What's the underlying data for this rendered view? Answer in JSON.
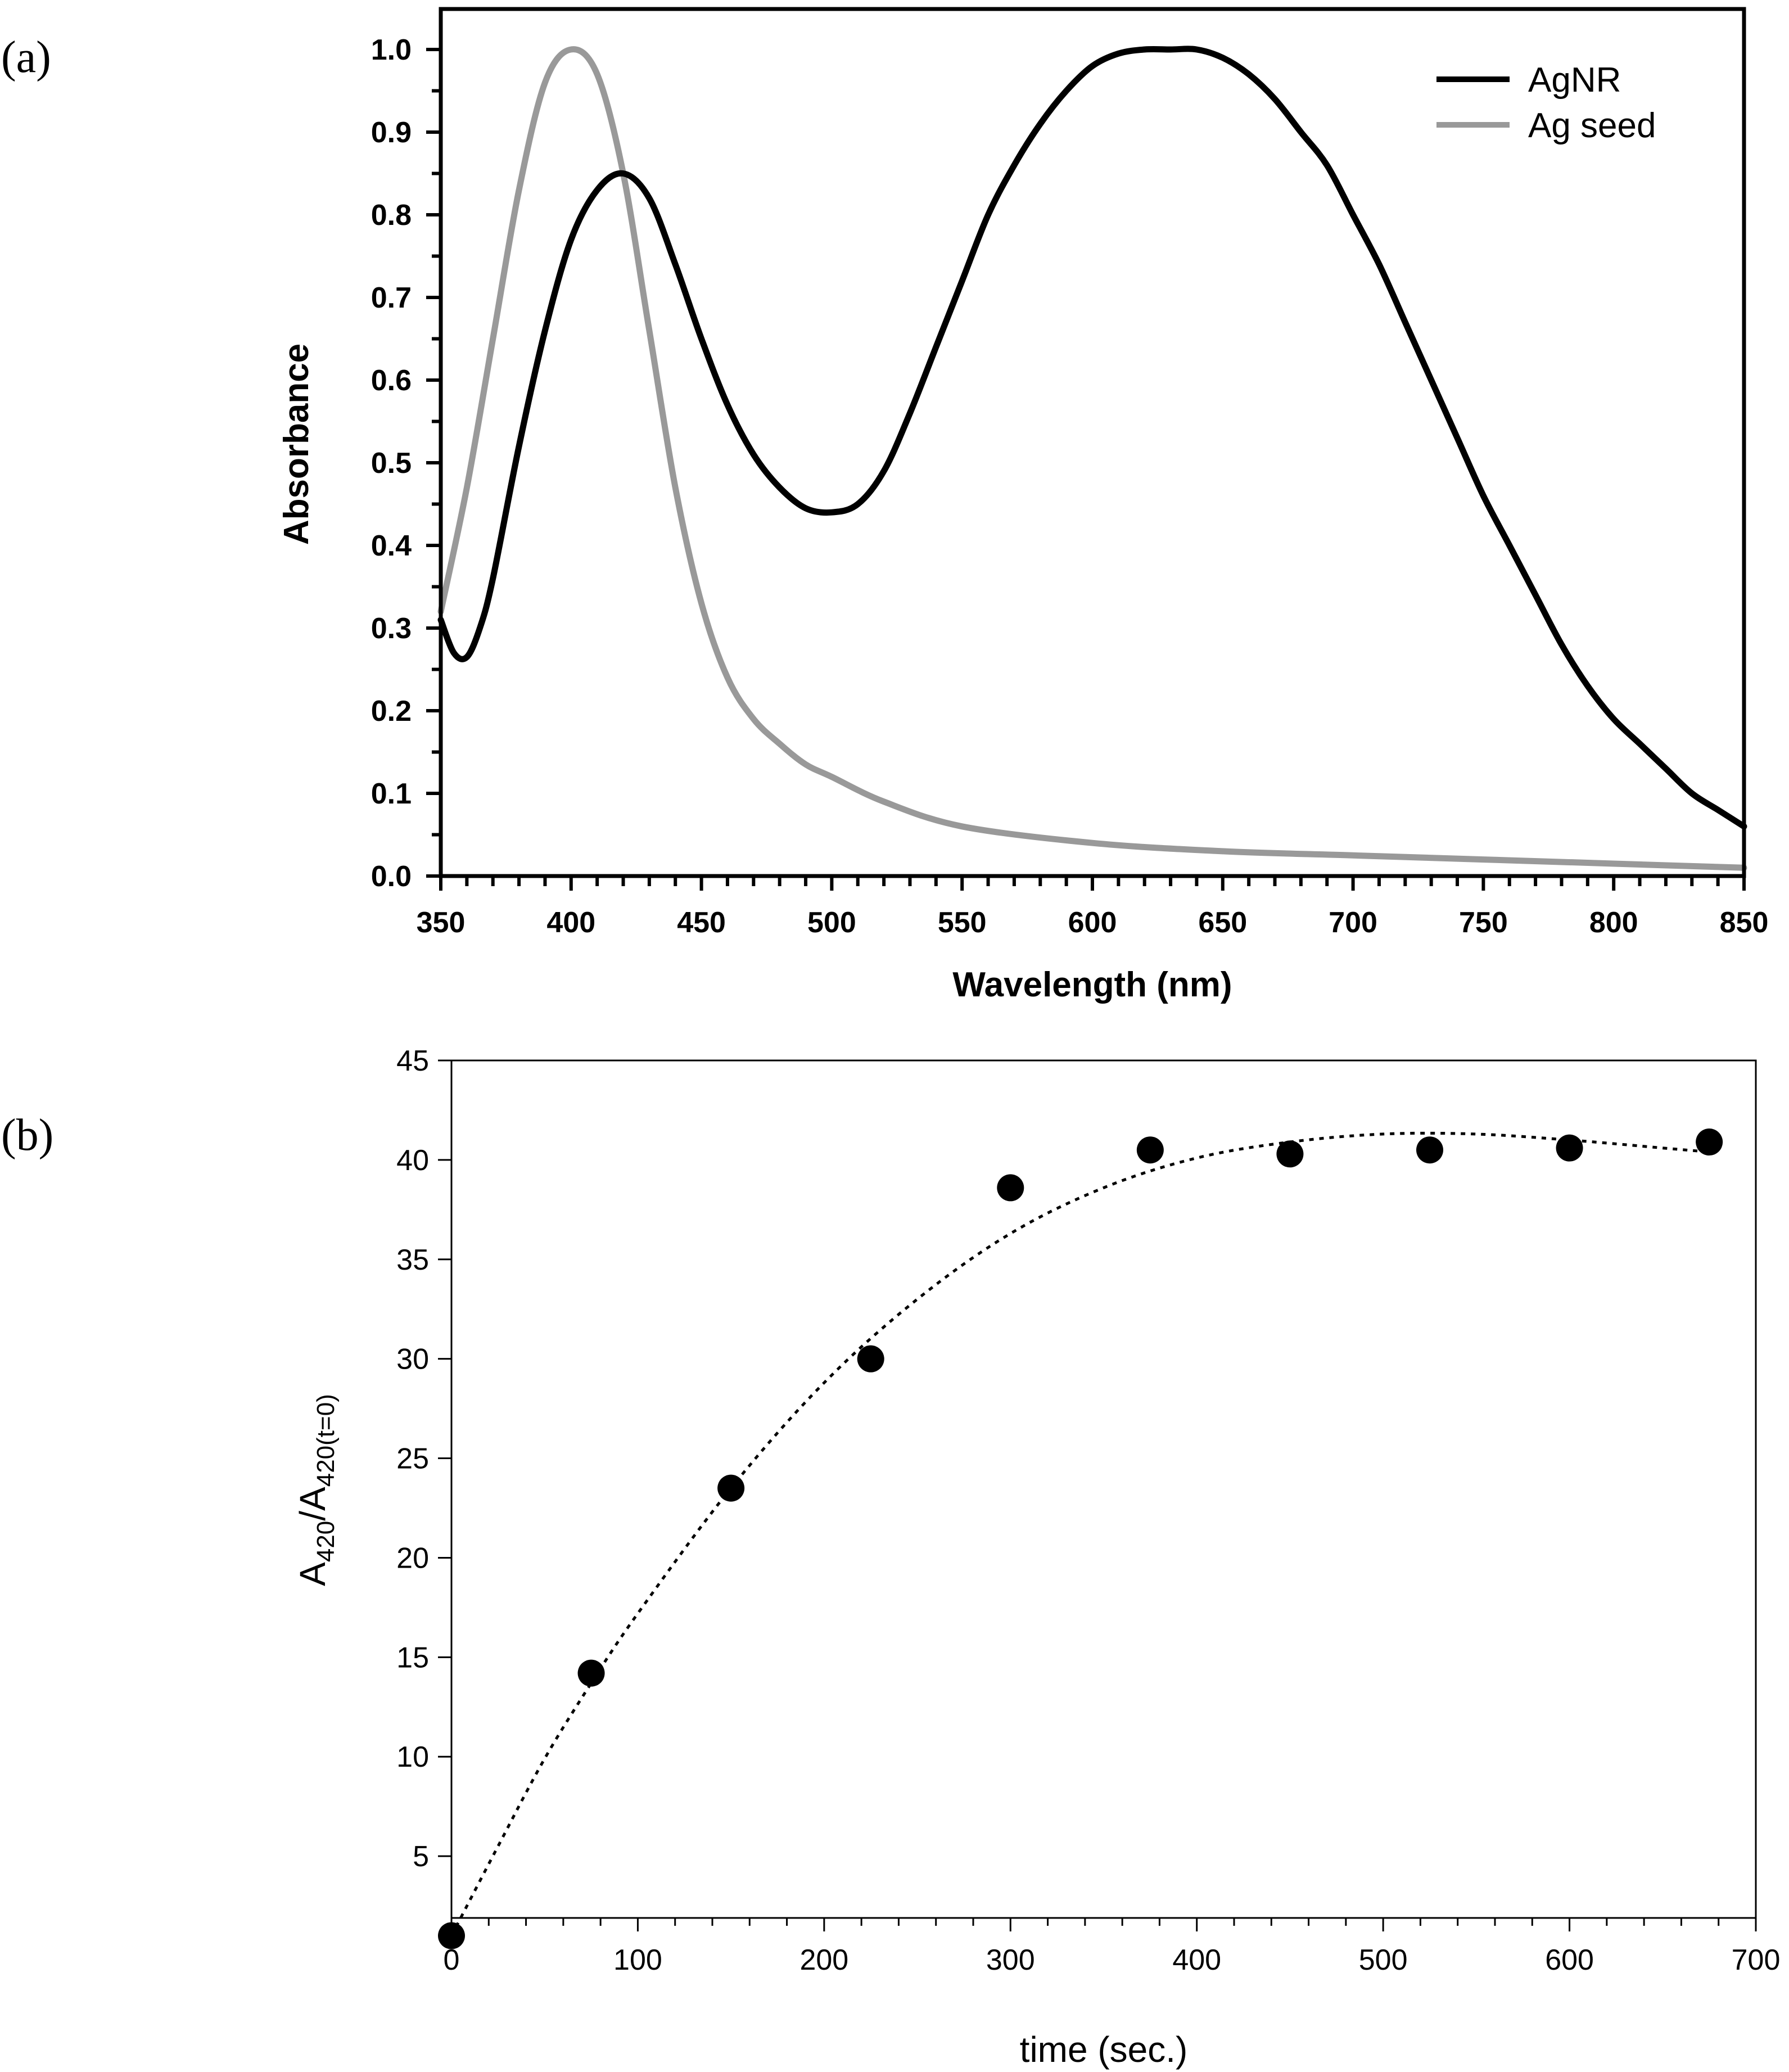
{
  "panels": {
    "a": "(a)",
    "b": "(b)"
  },
  "chart_data": [
    {
      "type": "line",
      "panel": "(a)",
      "xlabel": "Wavelength (nm)",
      "ylabel": "Absorbance",
      "xlim": [
        350,
        850
      ],
      "ylim": [
        0.0,
        1.05
      ],
      "xticks": [
        350,
        400,
        450,
        500,
        550,
        600,
        650,
        700,
        750,
        800,
        850
      ],
      "xtick_labels": [
        "350",
        "400",
        "450",
        "500",
        "550",
        "600",
        "650",
        "700",
        "750",
        "800",
        "850"
      ],
      "yticks": [
        0.0,
        0.1,
        0.2,
        0.3,
        0.4,
        0.5,
        0.6,
        0.7,
        0.8,
        0.9,
        1.0
      ],
      "ytick_labels": [
        "0.0",
        "0.1",
        "0.2",
        "0.3",
        "0.4",
        "0.5",
        "0.6",
        "0.7",
        "0.8",
        "0.9",
        "1.0"
      ],
      "legend_position": "top-right",
      "series": [
        {
          "name": "AgNR",
          "color": "#000000",
          "x": [
            350,
            355,
            360,
            365,
            370,
            380,
            390,
            400,
            410,
            420,
            430,
            440,
            450,
            460,
            470,
            480,
            490,
            500,
            510,
            520,
            530,
            540,
            550,
            560,
            570,
            580,
            590,
            600,
            610,
            620,
            630,
            640,
            650,
            660,
            670,
            680,
            690,
            700,
            710,
            720,
            730,
            740,
            750,
            760,
            770,
            780,
            790,
            800,
            810,
            820,
            830,
            840,
            850
          ],
          "y": [
            0.31,
            0.27,
            0.265,
            0.3,
            0.36,
            0.52,
            0.66,
            0.77,
            0.83,
            0.85,
            0.82,
            0.74,
            0.65,
            0.57,
            0.51,
            0.47,
            0.445,
            0.44,
            0.45,
            0.49,
            0.56,
            0.64,
            0.72,
            0.8,
            0.86,
            0.91,
            0.95,
            0.98,
            0.995,
            1.0,
            1.0,
            1.0,
            0.99,
            0.97,
            0.94,
            0.9,
            0.86,
            0.8,
            0.74,
            0.67,
            0.6,
            0.53,
            0.46,
            0.4,
            0.34,
            0.28,
            0.23,
            0.19,
            0.16,
            0.13,
            0.1,
            0.08,
            0.06
          ]
        },
        {
          "name": "Ag seed",
          "color": "#999999",
          "x": [
            350,
            360,
            370,
            380,
            390,
            400,
            410,
            420,
            430,
            440,
            450,
            460,
            470,
            480,
            490,
            500,
            520,
            550,
            600,
            650,
            700,
            750,
            800,
            850
          ],
          "y": [
            0.32,
            0.47,
            0.65,
            0.83,
            0.96,
            1.0,
            0.97,
            0.85,
            0.66,
            0.47,
            0.33,
            0.24,
            0.19,
            0.16,
            0.135,
            0.12,
            0.09,
            0.06,
            0.04,
            0.03,
            0.025,
            0.02,
            0.015,
            0.01
          ]
        }
      ]
    },
    {
      "type": "scatter",
      "panel": "(b)",
      "xlabel": "time (sec.)",
      "ylabel_main": "A",
      "ylabel_sub1": "420",
      "ylabel_sep": "/A",
      "ylabel_sub2": "420(t=0)",
      "xlim": [
        0,
        700
      ],
      "ylim": [
        0,
        45
      ],
      "xticks": [
        0,
        100,
        200,
        300,
        400,
        500,
        600,
        700
      ],
      "xtick_labels": [
        "0",
        "100",
        "200",
        "300",
        "400",
        "500",
        "600",
        "700"
      ],
      "yticks": [
        5,
        10,
        15,
        20,
        25,
        30,
        35,
        40,
        45
      ],
      "ytick_labels": [
        "5",
        "10",
        "15",
        "20",
        "25",
        "30",
        "35",
        "40",
        "45"
      ],
      "points": {
        "x": [
          0,
          75,
          150,
          225,
          300,
          375,
          450,
          525,
          600,
          675
        ],
        "y": [
          1.0,
          14.2,
          23.5,
          30.0,
          38.6,
          40.5,
          40.3,
          40.5,
          40.6,
          40.9
        ]
      },
      "fit": {
        "style": "dotted",
        "x": [
          0,
          25,
          50,
          75,
          100,
          150,
          200,
          250,
          300,
          350,
          400,
          450,
          500,
          550,
          600,
          650,
          675
        ],
        "y": [
          1.0,
          5.5,
          9.9,
          13.7,
          17.2,
          23.5,
          28.8,
          33.0,
          36.3,
          38.6,
          40.1,
          40.9,
          41.3,
          41.3,
          41.0,
          40.6,
          40.4
        ]
      }
    }
  ]
}
